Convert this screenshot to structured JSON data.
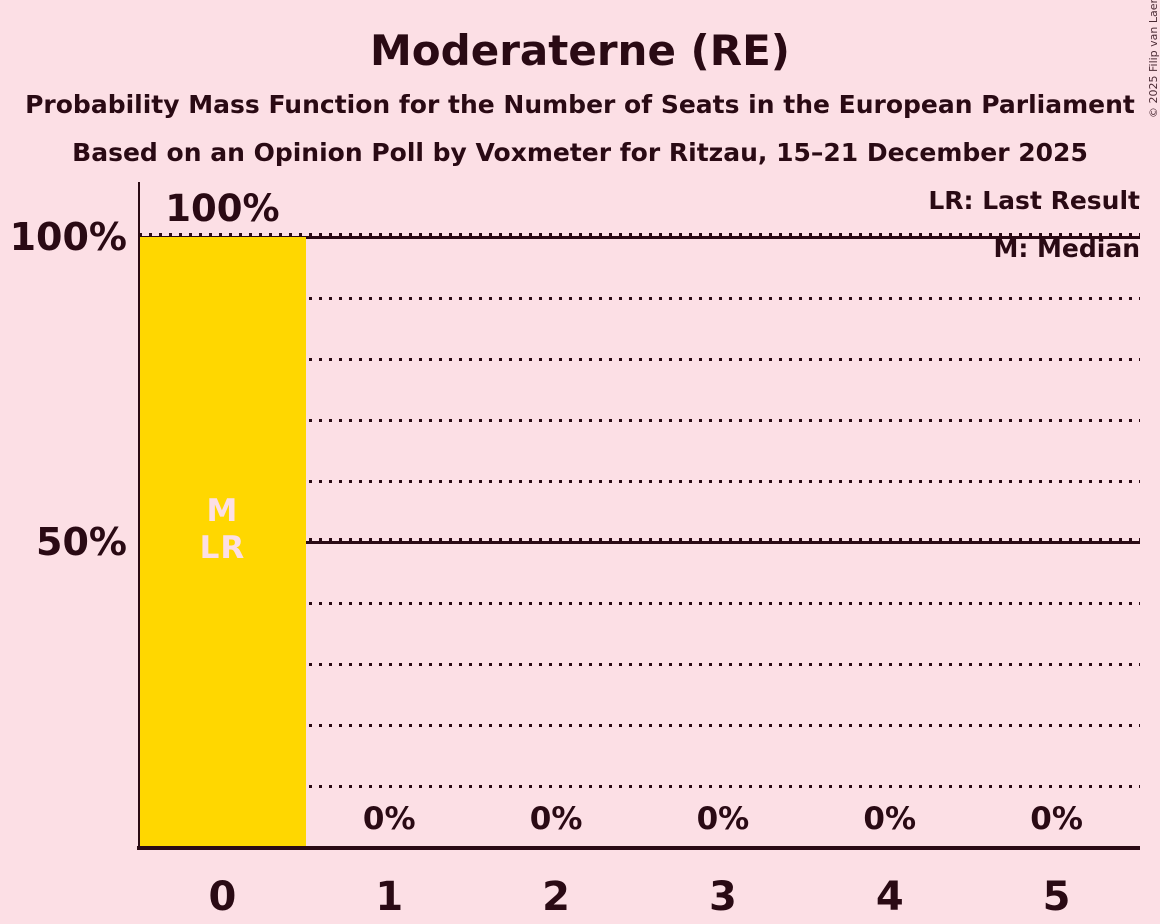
{
  "title": "Moderaterne (RE)",
  "subtitle1": "Probability Mass Function for the Number of Seats in the European Parliament",
  "subtitle2": "Based on an Opinion Poll by Voxmeter for Ritzau, 15–21 December 2025",
  "copyright": "© 2025 Filip van Laenen",
  "legend": {
    "lr": "LR: Last Result",
    "m": "M: Median"
  },
  "colors": {
    "background": "#FCDFE5",
    "text": "#2A0A14",
    "bar": "#FFD700",
    "bar_inner_label": "#FCDFE5",
    "grid": "#2A0A14"
  },
  "chart_data": {
    "type": "bar",
    "title": "Moderaterne (RE) — Probability Mass Function for the Number of Seats in the European Parliament",
    "categories": [
      "0",
      "1",
      "2",
      "3",
      "4",
      "5"
    ],
    "values": [
      100,
      0,
      0,
      0,
      0,
      0
    ],
    "value_labels": [
      "100%",
      "0%",
      "0%",
      "0%",
      "0%",
      "0%"
    ],
    "ylim": [
      0,
      100
    ],
    "yticks": [
      {
        "value": 100,
        "label": "100%"
      },
      {
        "value": 50,
        "label": "50%"
      }
    ],
    "gridlines": {
      "dotted_step_percent": 10,
      "solid_values": [
        50,
        100
      ]
    },
    "annotations": {
      "median_category": "0",
      "last_result_category": "0",
      "bar_inner_lines": [
        "M",
        "LR"
      ]
    },
    "legend_position": "top-right",
    "grid": true
  }
}
